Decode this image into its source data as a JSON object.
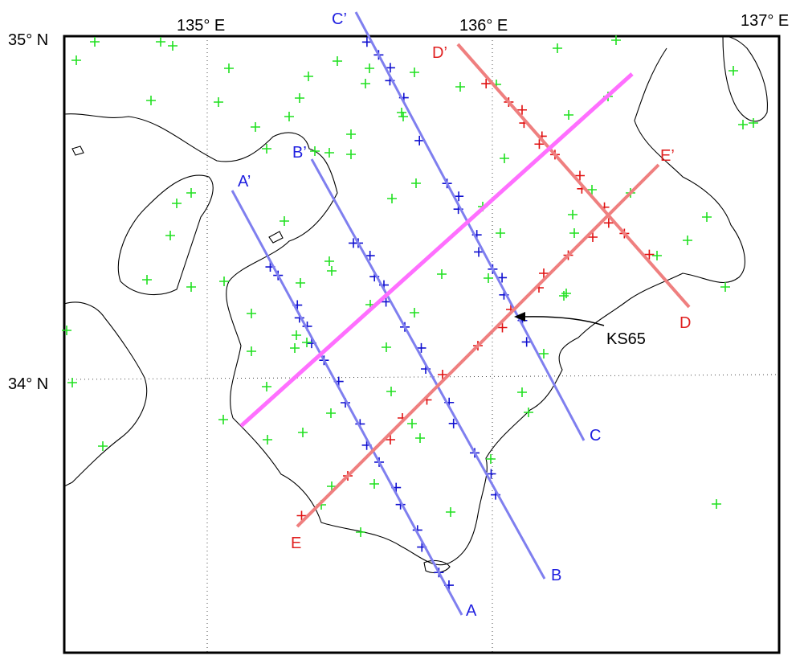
{
  "map": {
    "axis_labels": {
      "lon_135": "135° E",
      "lon_136": "136° E",
      "lon_137": "137° E",
      "lat_35": "35° N",
      "lat_34": "34° N"
    },
    "profiles": {
      "A": "A",
      "A_prime": "A’",
      "B": "B",
      "B_prime": "B’",
      "C": "C",
      "C_prime": "C’",
      "D": "D",
      "D_prime": "D’",
      "E": "E",
      "E_prime": "E’"
    },
    "station_label": "KS65"
  }
}
